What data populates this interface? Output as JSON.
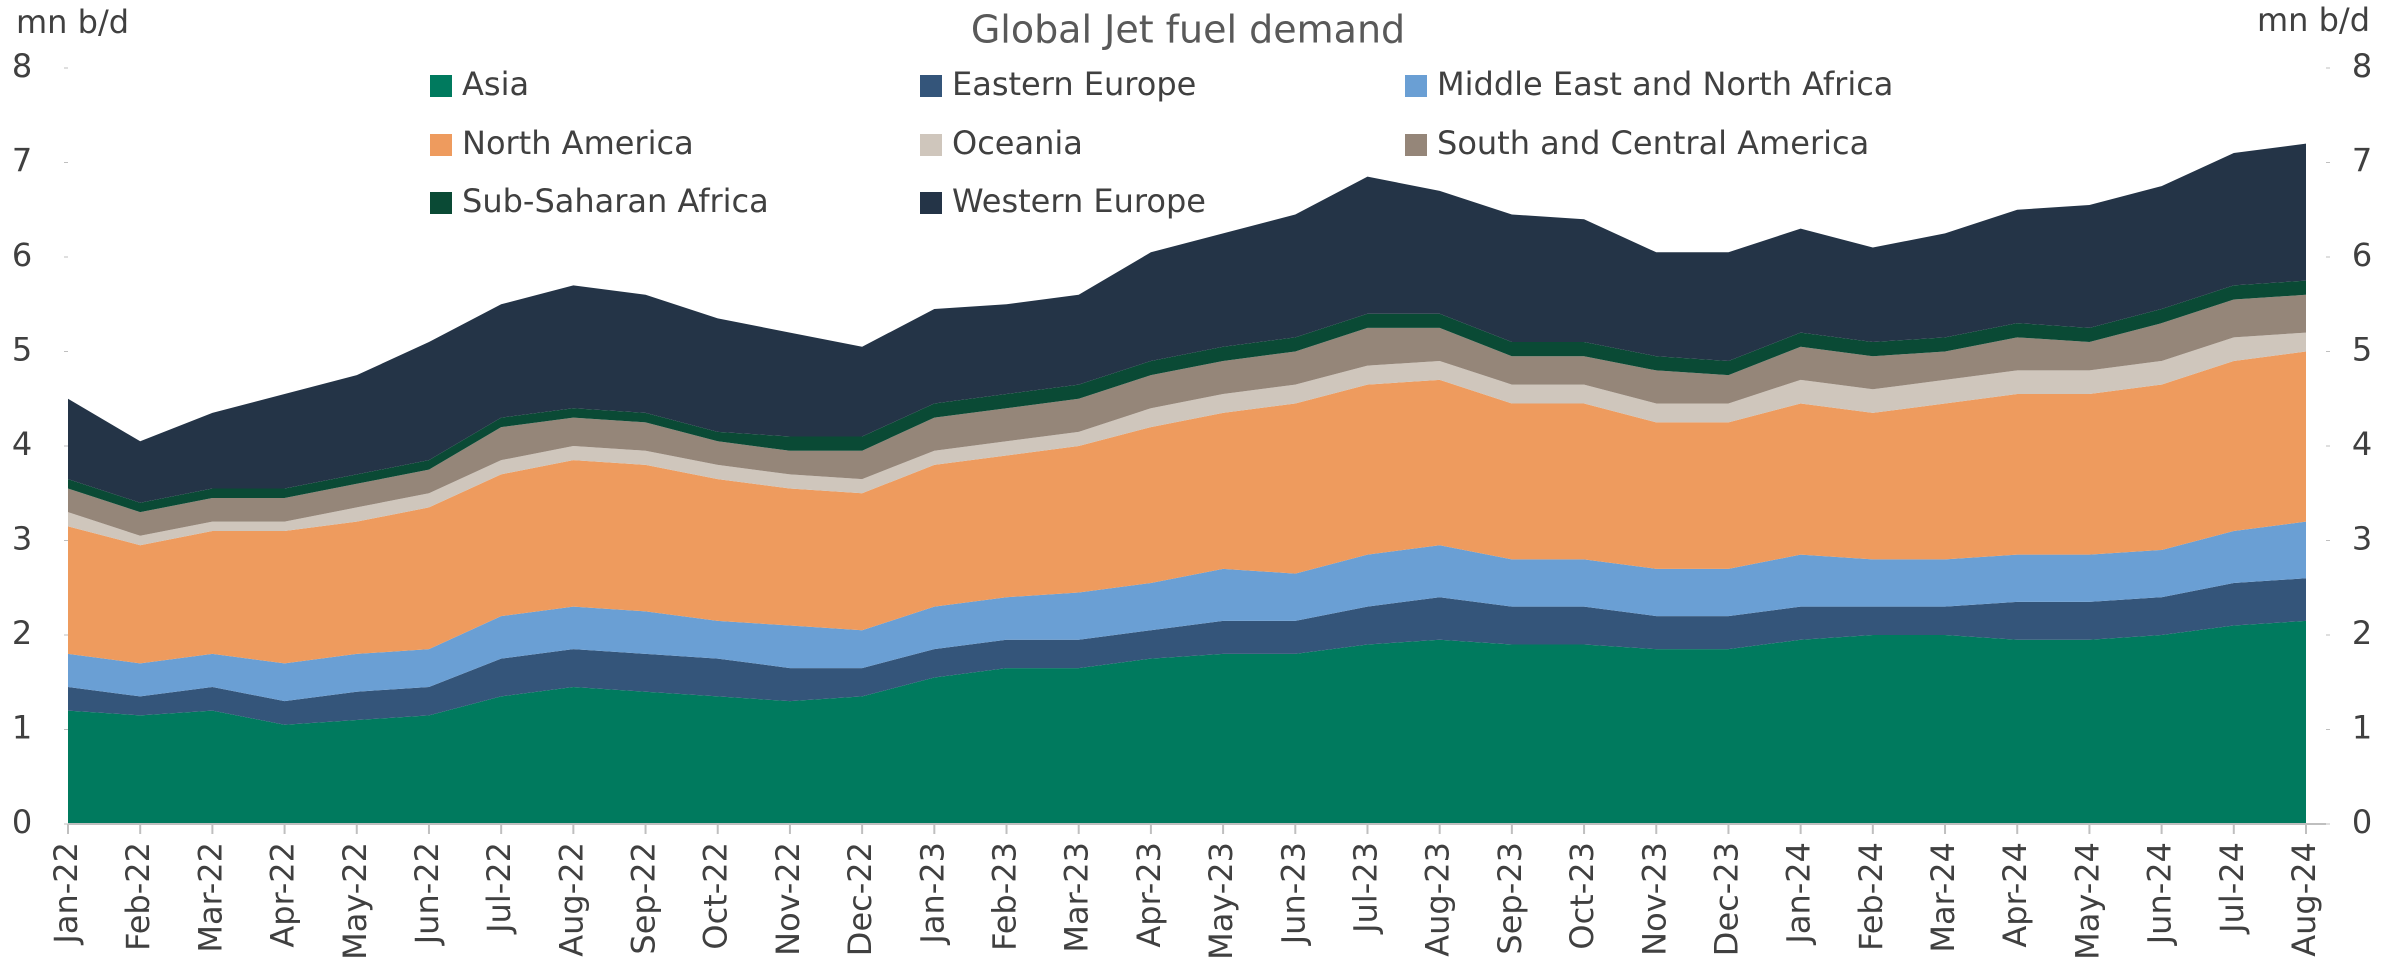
{
  "chart_data": {
    "type": "stacked_area",
    "title": "Global Jet fuel demand",
    "y_axis_label": "mn b/d",
    "y2_axis_label": "mn b/d",
    "categories": [
      "Jan-22",
      "Feb-22",
      "Mar-22",
      "Apr-22",
      "May-22",
      "Jun-22",
      "Jul-22",
      "Aug-22",
      "Sep-22",
      "Oct-22",
      "Nov-22",
      "Dec-22",
      "Jan-23",
      "Feb-23",
      "Mar-23",
      "Apr-23",
      "May-23",
      "Jun-23",
      "Jul-23",
      "Aug-23",
      "Sep-23",
      "Oct-23",
      "Nov-23",
      "Dec-23",
      "Jan-24",
      "Feb-24",
      "Mar-24",
      "Apr-24",
      "May-24",
      "Jun-24",
      "Jul-24",
      "Aug-24"
    ],
    "series": [
      {
        "name": "Asia",
        "color": "#007a5e",
        "values": [
          1.2,
          1.15,
          1.2,
          1.05,
          1.1,
          1.15,
          1.35,
          1.45,
          1.4,
          1.35,
          1.3,
          1.35,
          1.55,
          1.65,
          1.65,
          1.75,
          1.8,
          1.8,
          1.9,
          1.95,
          1.9,
          1.9,
          1.85,
          1.85,
          1.95,
          2.0,
          2.0,
          1.95,
          1.95,
          2.0,
          2.1,
          2.15
        ]
      },
      {
        "name": "Eastern Europe",
        "color": "#34557a",
        "values": [
          0.25,
          0.2,
          0.25,
          0.25,
          0.3,
          0.3,
          0.4,
          0.4,
          0.4,
          0.4,
          0.35,
          0.3,
          0.3,
          0.3,
          0.3,
          0.3,
          0.35,
          0.35,
          0.4,
          0.45,
          0.4,
          0.4,
          0.35,
          0.35,
          0.35,
          0.3,
          0.3,
          0.4,
          0.4,
          0.4,
          0.45,
          0.45
        ]
      },
      {
        "name": "Middle East and North Africa",
        "color": "#6a9fd4",
        "values": [
          0.35,
          0.35,
          0.35,
          0.4,
          0.4,
          0.4,
          0.45,
          0.45,
          0.45,
          0.4,
          0.45,
          0.4,
          0.45,
          0.45,
          0.5,
          0.5,
          0.55,
          0.5,
          0.55,
          0.55,
          0.5,
          0.5,
          0.5,
          0.5,
          0.55,
          0.5,
          0.5,
          0.5,
          0.5,
          0.5,
          0.55,
          0.6
        ]
      },
      {
        "name": "North America",
        "color": "#ee9b5e",
        "values": [
          1.35,
          1.25,
          1.3,
          1.4,
          1.4,
          1.5,
          1.5,
          1.55,
          1.55,
          1.5,
          1.45,
          1.45,
          1.5,
          1.5,
          1.55,
          1.65,
          1.65,
          1.8,
          1.8,
          1.75,
          1.65,
          1.65,
          1.55,
          1.55,
          1.6,
          1.55,
          1.65,
          1.7,
          1.7,
          1.75,
          1.8,
          1.8
        ]
      },
      {
        "name": "Oceania",
        "color": "#cfc6bc",
        "values": [
          0.15,
          0.1,
          0.1,
          0.1,
          0.15,
          0.15,
          0.15,
          0.15,
          0.15,
          0.15,
          0.15,
          0.15,
          0.15,
          0.15,
          0.15,
          0.2,
          0.2,
          0.2,
          0.2,
          0.2,
          0.2,
          0.2,
          0.2,
          0.2,
          0.25,
          0.25,
          0.25,
          0.25,
          0.25,
          0.25,
          0.25,
          0.2
        ]
      },
      {
        "name": "South and Central America",
        "color": "#958679",
        "values": [
          0.25,
          0.25,
          0.25,
          0.25,
          0.25,
          0.25,
          0.35,
          0.3,
          0.3,
          0.25,
          0.25,
          0.3,
          0.35,
          0.35,
          0.35,
          0.35,
          0.35,
          0.35,
          0.4,
          0.35,
          0.3,
          0.3,
          0.35,
          0.3,
          0.35,
          0.35,
          0.3,
          0.35,
          0.3,
          0.4,
          0.4,
          0.4
        ]
      },
      {
        "name": "Sub-Saharan Africa",
        "color": "#0a4a35",
        "values": [
          0.1,
          0.1,
          0.1,
          0.1,
          0.1,
          0.1,
          0.1,
          0.1,
          0.1,
          0.1,
          0.15,
          0.15,
          0.15,
          0.15,
          0.15,
          0.15,
          0.15,
          0.15,
          0.15,
          0.15,
          0.15,
          0.15,
          0.15,
          0.15,
          0.15,
          0.15,
          0.15,
          0.15,
          0.15,
          0.15,
          0.15,
          0.15
        ]
      },
      {
        "name": "Western Europe",
        "color": "#243447",
        "values": [
          0.85,
          0.65,
          0.8,
          1.0,
          1.05,
          1.25,
          1.2,
          1.3,
          1.25,
          1.2,
          1.1,
          0.95,
          1.0,
          0.95,
          0.95,
          1.15,
          1.2,
          1.3,
          1.45,
          1.3,
          1.35,
          1.3,
          1.1,
          1.15,
          1.1,
          1.0,
          1.1,
          1.2,
          1.3,
          1.3,
          1.4,
          1.45
        ]
      }
    ],
    "ylim": [
      0,
      8
    ],
    "yticks": [
      0,
      1,
      2,
      3,
      4,
      5,
      6,
      7,
      8
    ],
    "y2lim": [
      0,
      8
    ],
    "y2ticks": [
      0,
      1,
      2,
      3,
      4,
      5,
      6,
      7,
      8
    ],
    "legend": "top"
  }
}
